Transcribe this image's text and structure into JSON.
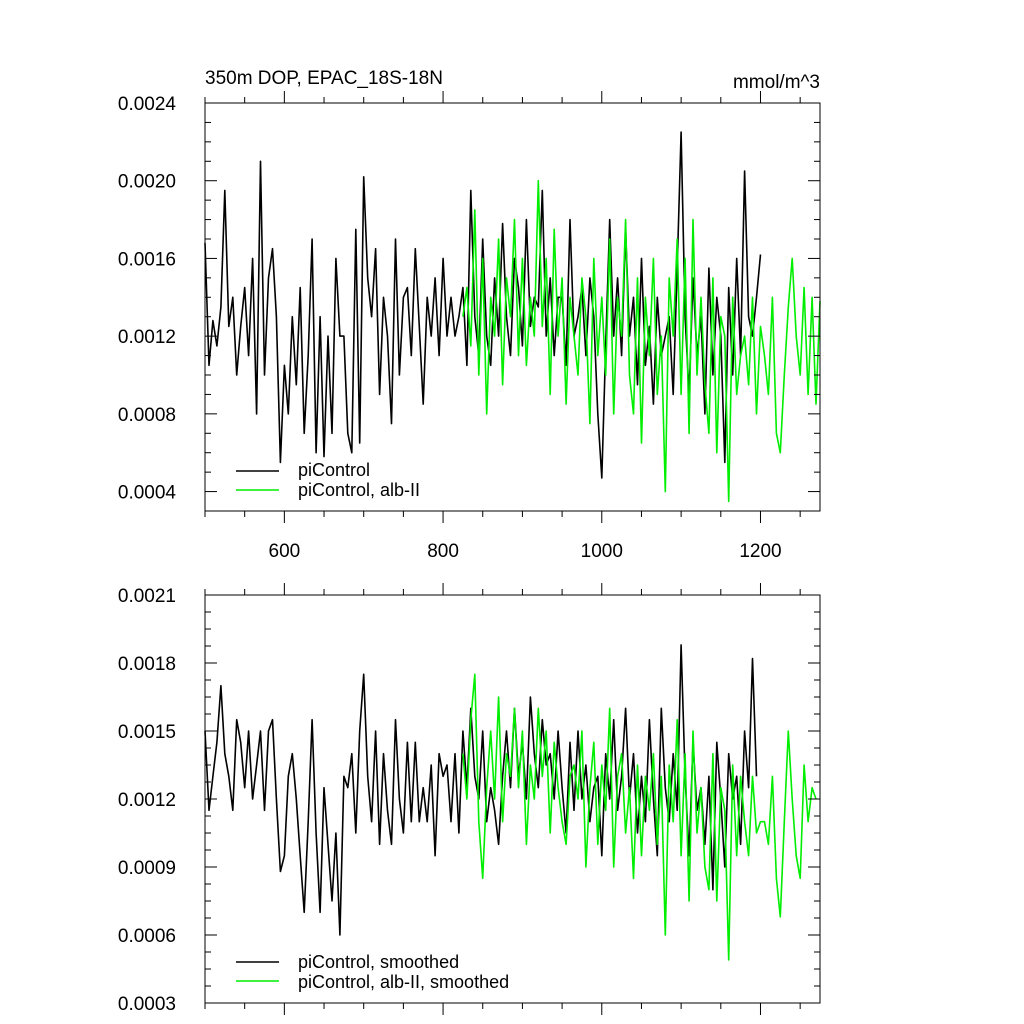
{
  "chart_data": [
    {
      "type": "line",
      "title": "350m DOP, EPAC_18S-18N",
      "units": "mmol/m^3",
      "xlim": [
        500,
        1275
      ],
      "ylim": [
        0.0003,
        0.0024
      ],
      "xticks": [
        600,
        800,
        1000,
        1200
      ],
      "xtick_labels": [
        "600",
        "800",
        "1000",
        "1200"
      ],
      "yticks": [
        0.0004,
        0.0008,
        0.0012,
        0.0016,
        0.002,
        0.0024
      ],
      "ytick_labels": [
        "0.0004",
        "0.0008",
        "0.0012",
        "0.0016",
        "0.0020",
        "0.0024"
      ],
      "legend": [
        "piControl",
        "piControl, alb-II"
      ],
      "legend_position": "bottom-left",
      "series": [
        {
          "name": "piControl",
          "color": "#000000",
          "x": [
            500,
            505,
            510,
            515,
            520,
            525,
            530,
            535,
            540,
            545,
            550,
            555,
            560,
            565,
            570,
            575,
            580,
            585,
            590,
            595,
            600,
            605,
            610,
            615,
            620,
            625,
            630,
            635,
            640,
            645,
            650,
            655,
            660,
            665,
            670,
            675,
            680,
            685,
            690,
            695,
            700,
            705,
            710,
            715,
            720,
            725,
            730,
            735,
            740,
            745,
            750,
            755,
            760,
            765,
            770,
            775,
            780,
            785,
            790,
            795,
            800,
            805,
            810,
            815,
            820,
            825,
            830,
            835,
            840,
            845,
            850,
            855,
            860,
            865,
            870,
            875,
            880,
            885,
            890,
            895,
            900,
            905,
            910,
            915,
            920,
            925,
            930,
            935,
            940,
            945,
            950,
            955,
            960,
            965,
            970,
            975,
            980,
            985,
            990,
            995,
            1000,
            1005,
            1010,
            1015,
            1020,
            1025,
            1030,
            1035,
            1040,
            1045,
            1050,
            1055,
            1060,
            1065,
            1070,
            1075,
            1080,
            1085,
            1090,
            1095,
            1100,
            1105,
            1110,
            1115,
            1120,
            1125,
            1130,
            1135,
            1140,
            1145,
            1150,
            1155,
            1160,
            1165,
            1170,
            1175,
            1180,
            1185,
            1190,
            1195,
            1200
          ],
          "values": [
            0.00168,
            0.00105,
            0.00128,
            0.00115,
            0.00135,
            0.00195,
            0.00125,
            0.0014,
            0.001,
            0.00125,
            0.00145,
            0.0011,
            0.0016,
            0.0008,
            0.0021,
            0.001,
            0.0015,
            0.00165,
            0.0013,
            0.00055,
            0.00105,
            0.0008,
            0.0013,
            0.00095,
            0.00145,
            0.0007,
            0.0011,
            0.0017,
            0.0006,
            0.0013,
            0.00058,
            0.0012,
            0.0007,
            0.0016,
            0.0012,
            0.0012,
            0.0007,
            0.0006,
            0.00175,
            0.00065,
            0.00202,
            0.0015,
            0.0013,
            0.00165,
            0.0009,
            0.0014,
            0.0012,
            0.00075,
            0.0017,
            0.001,
            0.0014,
            0.00145,
            0.0011,
            0.00165,
            0.00125,
            0.00085,
            0.0014,
            0.0012,
            0.0015,
            0.0011,
            0.0016,
            0.0012,
            0.0014,
            0.0012,
            0.0013,
            0.00145,
            0.00105,
            0.00195,
            0.0013,
            0.0011,
            0.0017,
            0.0012,
            0.00105,
            0.0015,
            0.0012,
            0.00178,
            0.0013,
            0.0011,
            0.0016,
            0.00145,
            0.00115,
            0.0018,
            0.00125,
            0.0014,
            0.00135,
            0.00195,
            0.0012,
            0.0015,
            0.0011,
            0.0014,
            0.0014,
            0.00105,
            0.0018,
            0.0012,
            0.0013,
            0.00145,
            0.0011,
            0.0015,
            0.0013,
            0.0008,
            0.00047,
            0.00115,
            0.0018,
            0.0012,
            0.0015,
            0.0011,
            0.00175,
            0.0012,
            0.0014,
            0.00095,
            0.0016,
            0.00105,
            0.00125,
            0.00085,
            0.0014,
            0.0011,
            0.0012,
            0.0013,
            0.0009,
            0.00155,
            0.00225,
            0.0013,
            0.0009,
            0.0015,
            0.0011,
            0.0013,
            0.0008,
            0.00155,
            0.001,
            0.0014,
            0.0012,
            0.00055,
            0.00145,
            0.001,
            0.0016,
            0.0011,
            0.00205,
            0.0013,
            0.0012,
            0.0014,
            0.00162
          ]
        },
        {
          "name": "piControl, alb-II",
          "color": "#00ee00",
          "x": [
            825,
            830,
            835,
            840,
            845,
            850,
            855,
            860,
            865,
            870,
            875,
            880,
            885,
            890,
            895,
            900,
            905,
            910,
            915,
            920,
            925,
            930,
            935,
            940,
            945,
            950,
            955,
            960,
            965,
            970,
            975,
            980,
            985,
            990,
            995,
            1000,
            1005,
            1010,
            1015,
            1020,
            1025,
            1030,
            1035,
            1040,
            1045,
            1050,
            1055,
            1060,
            1065,
            1070,
            1075,
            1080,
            1085,
            1090,
            1095,
            1100,
            1105,
            1110,
            1115,
            1120,
            1125,
            1130,
            1135,
            1140,
            1145,
            1150,
            1155,
            1160,
            1165,
            1170,
            1175,
            1180,
            1185,
            1190,
            1195,
            1200,
            1205,
            1210,
            1215,
            1220,
            1225,
            1230,
            1235,
            1240,
            1245,
            1250,
            1255,
            1260,
            1265,
            1270,
            1275
          ],
          "values": [
            0.0013,
            0.00145,
            0.00115,
            0.00185,
            0.001,
            0.0016,
            0.0008,
            0.0014,
            0.0012,
            0.0017,
            0.00095,
            0.0015,
            0.0013,
            0.0018,
            0.0011,
            0.0016,
            0.00105,
            0.0014,
            0.0012,
            0.002,
            0.00125,
            0.0016,
            0.0009,
            0.00175,
            0.0012,
            0.0015,
            0.00085,
            0.0014,
            0.0012,
            0.001,
            0.0015,
            0.0013,
            0.00075,
            0.0016,
            0.0011,
            0.0014,
            0.001,
            0.0017,
            0.0008,
            0.0014,
            0.0012,
            0.0018,
            0.001,
            0.0008,
            0.0015,
            0.00065,
            0.0014,
            0.0011,
            0.0016,
            0.0009,
            0.0012,
            0.0004,
            0.0015,
            0.0012,
            0.0017,
            0.0009,
            0.0016,
            0.0007,
            0.0018,
            0.001,
            0.0014,
            0.00095,
            0.0007,
            0.0015,
            0.0006,
            0.0013,
            0.0012,
            0.00035,
            0.0014,
            0.0009,
            0.0011,
            0.0012,
            0.00095,
            0.0014,
            0.0008,
            0.00125,
            0.0011,
            0.0009,
            0.0014,
            0.0007,
            0.0006,
            0.001,
            0.00135,
            0.0016,
            0.0012,
            0.001,
            0.00145,
            0.0009,
            0.0014,
            0.00085,
            0.00138
          ]
        }
      ]
    },
    {
      "type": "line",
      "title": "",
      "xlim": [
        500,
        1275
      ],
      "ylim": [
        0.0003,
        0.0021
      ],
      "xticks": [
        600,
        800,
        1000,
        1200
      ],
      "yticks": [
        0.0003,
        0.0006,
        0.0009,
        0.0012,
        0.0015,
        0.0018,
        0.0021
      ],
      "ytick_labels": [
        "0.0003",
        "0.0006",
        "0.0009",
        "0.0012",
        "0.0015",
        "0.0018",
        "0.0021"
      ],
      "legend": [
        "piControl, smoothed",
        "piControl, alb-II, smoothed"
      ],
      "legend_position": "bottom-left",
      "series": [
        {
          "name": "piControl, smoothed",
          "color": "#000000",
          "x": [
            500,
            505,
            510,
            515,
            520,
            525,
            530,
            535,
            540,
            545,
            550,
            555,
            560,
            565,
            570,
            575,
            580,
            585,
            590,
            595,
            600,
            605,
            610,
            615,
            620,
            625,
            630,
            635,
            640,
            645,
            650,
            655,
            660,
            665,
            670,
            675,
            680,
            685,
            690,
            695,
            700,
            705,
            710,
            715,
            720,
            725,
            730,
            735,
            740,
            745,
            750,
            755,
            760,
            765,
            770,
            775,
            780,
            785,
            790,
            795,
            800,
            805,
            810,
            815,
            820,
            825,
            830,
            835,
            840,
            845,
            850,
            855,
            860,
            865,
            870,
            875,
            880,
            885,
            890,
            895,
            900,
            905,
            910,
            915,
            920,
            925,
            930,
            935,
            940,
            945,
            950,
            955,
            960,
            965,
            970,
            975,
            980,
            985,
            990,
            995,
            1000,
            1005,
            1010,
            1015,
            1020,
            1025,
            1030,
            1035,
            1040,
            1045,
            1050,
            1055,
            1060,
            1065,
            1070,
            1075,
            1080,
            1085,
            1090,
            1095,
            1100,
            1105,
            1110,
            1115,
            1120,
            1125,
            1130,
            1135,
            1140,
            1145,
            1150,
            1155,
            1160,
            1165,
            1170,
            1175,
            1180,
            1185,
            1190,
            1195
          ],
          "values": [
            0.0015,
            0.00115,
            0.0013,
            0.00145,
            0.0017,
            0.0014,
            0.0013,
            0.00115,
            0.00155,
            0.00145,
            0.00125,
            0.0015,
            0.0012,
            0.00135,
            0.0015,
            0.00115,
            0.0015,
            0.00155,
            0.0012,
            0.00088,
            0.00095,
            0.0013,
            0.0014,
            0.0012,
            0.00095,
            0.0007,
            0.0011,
            0.00155,
            0.00105,
            0.0007,
            0.00125,
            0.001,
            0.00075,
            0.00105,
            0.0006,
            0.0013,
            0.00125,
            0.0014,
            0.00105,
            0.0015,
            0.00175,
            0.0013,
            0.0011,
            0.0015,
            0.001,
            0.0014,
            0.00115,
            0.001,
            0.00155,
            0.0012,
            0.00105,
            0.00145,
            0.0011,
            0.00145,
            0.0011,
            0.00125,
            0.0011,
            0.00135,
            0.00095,
            0.0014,
            0.0013,
            0.00135,
            0.0011,
            0.0014,
            0.00105,
            0.0015,
            0.00125,
            0.0016,
            0.0013,
            0.0012,
            0.0015,
            0.0011,
            0.00125,
            0.00115,
            0.001,
            0.0013,
            0.0015,
            0.00125,
            0.0016,
            0.0013,
            0.00145,
            0.0012,
            0.00165,
            0.0014,
            0.00125,
            0.00155,
            0.00135,
            0.0014,
            0.0012,
            0.0015,
            0.00125,
            0.00105,
            0.00145,
            0.00115,
            0.0015,
            0.0012,
            0.00135,
            0.0011,
            0.00125,
            0.0013,
            0.00095,
            0.0014,
            0.0012,
            0.00155,
            0.00115,
            0.0013,
            0.0016,
            0.0012,
            0.0014,
            0.00105,
            0.0013,
            0.0011,
            0.00155,
            0.0012,
            0.00095,
            0.0016,
            0.00125,
            0.0011,
            0.0014,
            0.00115,
            0.00188,
            0.0013,
            0.00095,
            0.00145,
            0.00115,
            0.00125,
            0.001,
            0.0013,
            0.0008,
            0.00145,
            0.0012,
            0.0009,
            0.0014,
            0.0012,
            0.0013,
            0.001,
            0.0015,
            0.00125,
            0.00182,
            0.0013
          ]
        },
        {
          "name": "piControl, alb-II, smoothed",
          "color": "#00ee00",
          "x": [
            825,
            830,
            835,
            840,
            845,
            850,
            855,
            860,
            865,
            870,
            875,
            880,
            885,
            890,
            895,
            900,
            905,
            910,
            915,
            920,
            925,
            930,
            935,
            940,
            945,
            950,
            955,
            960,
            965,
            970,
            975,
            980,
            985,
            990,
            995,
            1000,
            1005,
            1010,
            1015,
            1020,
            1025,
            1030,
            1035,
            1040,
            1045,
            1050,
            1055,
            1060,
            1065,
            1070,
            1075,
            1080,
            1085,
            1090,
            1095,
            1100,
            1105,
            1110,
            1115,
            1120,
            1125,
            1130,
            1135,
            1140,
            1145,
            1150,
            1155,
            1160,
            1165,
            1170,
            1175,
            1180,
            1185,
            1190,
            1195,
            1200,
            1205,
            1210,
            1215,
            1220,
            1225,
            1230,
            1235,
            1240,
            1245,
            1250,
            1255,
            1260,
            1265,
            1270
          ],
          "values": [
            0.0014,
            0.0012,
            0.00155,
            0.00175,
            0.0011,
            0.00085,
            0.00125,
            0.0015,
            0.0012,
            0.00165,
            0.0011,
            0.0014,
            0.0013,
            0.0016,
            0.00125,
            0.0015,
            0.001,
            0.00135,
            0.0012,
            0.0016,
            0.0013,
            0.0015,
            0.00105,
            0.00145,
            0.00125,
            0.0011,
            0.001,
            0.0013,
            0.00135,
            0.0012,
            0.0015,
            0.0009,
            0.00125,
            0.00145,
            0.001,
            0.00135,
            0.00115,
            0.0016,
            0.0009,
            0.0013,
            0.0014,
            0.00105,
            0.00125,
            0.00085,
            0.00135,
            0.00095,
            0.0013,
            0.00115,
            0.0014,
            0.001,
            0.0013,
            0.0006,
            0.00135,
            0.0011,
            0.00155,
            0.00095,
            0.0014,
            0.00075,
            0.0015,
            0.00105,
            0.00125,
            0.0009,
            0.0008,
            0.0014,
            0.00075,
            0.00125,
            0.00115,
            0.00049,
            0.00135,
            0.00095,
            0.0013,
            0.0011,
            0.00095,
            0.0013,
            0.00105,
            0.0011,
            0.0011,
            0.001,
            0.0013,
            0.00085,
            0.00068,
            0.0011,
            0.0015,
            0.0012,
            0.00095,
            0.00085,
            0.00135,
            0.0011,
            0.00125,
            0.0012
          ]
        }
      ]
    }
  ]
}
